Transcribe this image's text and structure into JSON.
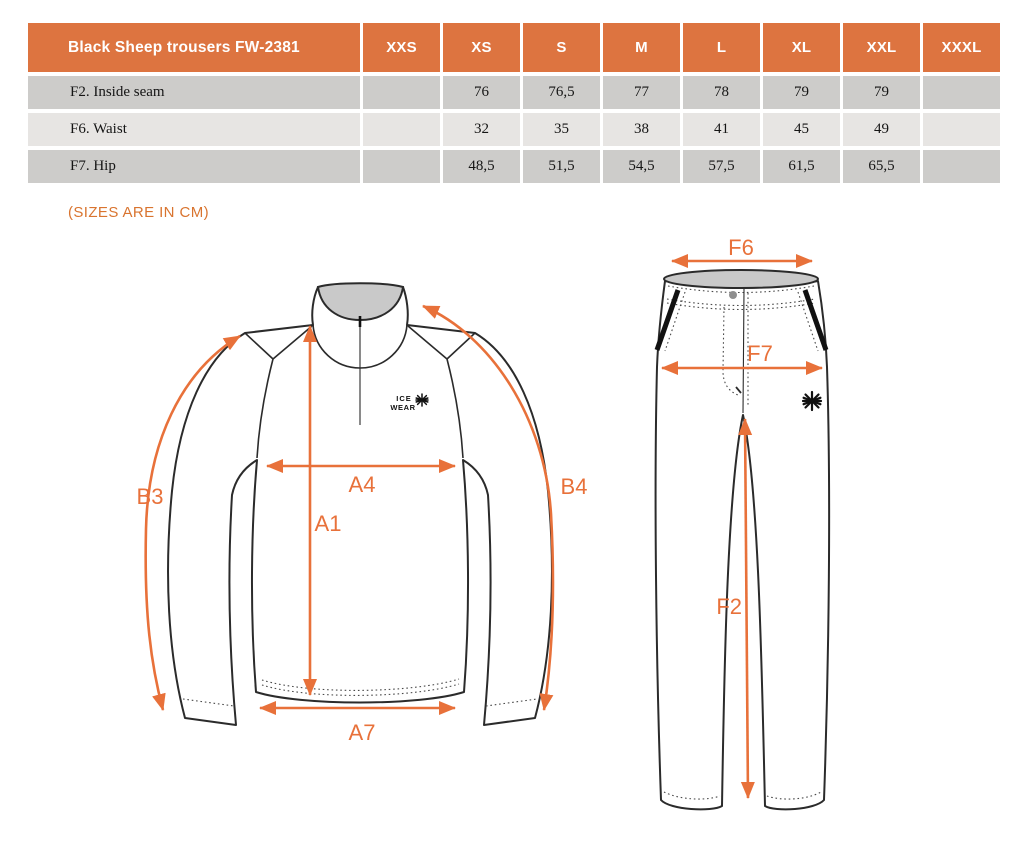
{
  "table": {
    "title": "Black Sheep trousers FW-2381",
    "sizes": [
      "XXS",
      "XS",
      "S",
      "M",
      "L",
      "XL",
      "XXL",
      "XXXL"
    ],
    "rows": [
      {
        "label": "F2. Inside seam",
        "values": [
          "",
          "76",
          "76,5",
          "77",
          "78",
          "79",
          "79",
          ""
        ]
      },
      {
        "label": "F6. Waist",
        "values": [
          "",
          "32",
          "35",
          "38",
          "41",
          "45",
          "49",
          ""
        ]
      },
      {
        "label": "F7. Hip",
        "values": [
          "",
          "48,5",
          "51,5",
          "54,5",
          "57,5",
          "61,5",
          "65,5",
          ""
        ]
      }
    ]
  },
  "note": "(SIZES ARE IN CM)",
  "colors": {
    "header_bg": "#dd7440",
    "row_dark": "#cdccca",
    "row_light": "#e7e5e3",
    "accent": "#e8713a",
    "outline": "#2b2b2b",
    "inner_gray": "#c9c9c9"
  },
  "sweater": {
    "labels": {
      "b3": "B3",
      "a4": "A4",
      "a1": "A1",
      "b4": "B4",
      "a7": "A7"
    },
    "brand": {
      "line1": "ICE",
      "line2": "WEAR"
    }
  },
  "trousers": {
    "labels": {
      "f6": "F6",
      "f7": "F7",
      "f2": "F2"
    }
  }
}
